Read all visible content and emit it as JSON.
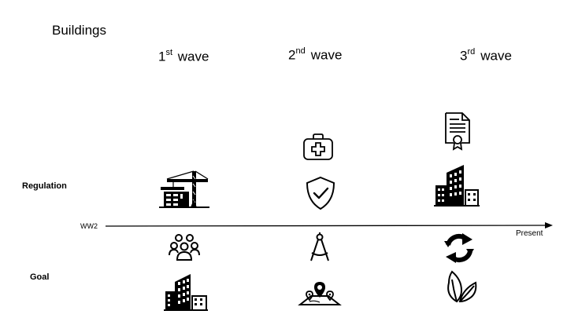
{
  "title": "Buildings",
  "waves": [
    {
      "num": "1",
      "sup": "st",
      "label": "wave"
    },
    {
      "num": "2",
      "sup": "nd",
      "label": "wave"
    },
    {
      "num": "3",
      "sup": "rd",
      "label": "wave"
    }
  ],
  "rows": {
    "regulation": "Regulation",
    "goal": "Goal"
  },
  "timeline": {
    "start": "WW2",
    "end": "Present"
  },
  "icons": {
    "wave1_regulation": [
      "construction-crane-icon"
    ],
    "wave1_goal": [
      "people-group-icon",
      "office-buildings-icon"
    ],
    "wave2_regulation": [
      "medical-kit-icon",
      "shield-check-icon"
    ],
    "wave2_goal": [
      "drafting-compass-icon",
      "map-location-icon"
    ],
    "wave3_regulation": [
      "certificate-document-icon",
      "office-buildings-icon"
    ],
    "wave3_goal": [
      "recycle-arrows-icon",
      "leaves-icon"
    ]
  }
}
